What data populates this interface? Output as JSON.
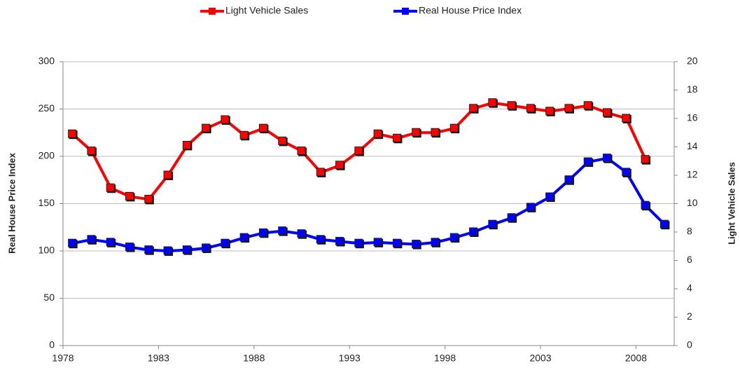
{
  "chart_data": {
    "type": "line",
    "x": [
      1978.5,
      1979.5,
      1980.5,
      1981.5,
      1982.5,
      1983.5,
      1984.5,
      1985.5,
      1986.5,
      1987.5,
      1988.5,
      1989.5,
      1990.5,
      1991.5,
      1992.5,
      1993.5,
      1994.5,
      1995.5,
      1996.5,
      1997.5,
      1998.5,
      1999.5,
      2000.5,
      2001.5,
      2002.5,
      2003.5,
      2004.5,
      2005.5,
      2006.5,
      2007.5,
      2008.5,
      2009.5
    ],
    "xlim": [
      1978,
      2010
    ],
    "xticks": [
      1978,
      1983,
      1988,
      1993,
      1998,
      2003,
      2008
    ],
    "ylim": [
      0,
      300
    ],
    "yticks": [
      0,
      50,
      100,
      150,
      200,
      250,
      300
    ],
    "y2lim": [
      0,
      20
    ],
    "y2ticks": [
      0,
      2,
      4,
      6,
      8,
      10,
      12,
      14,
      16,
      18,
      20
    ],
    "ylabel": "Real House Price Index",
    "y2label": "Light Vehicle Sales",
    "grid": true,
    "legend": "top",
    "series": [
      {
        "name": "Light Vehicle Sales",
        "color": "#ff0000",
        "axis": "y2",
        "values": [
          14.9,
          13.7,
          11.1,
          10.5,
          10.3,
          12.0,
          14.1,
          15.3,
          15.9,
          14.8,
          15.3,
          14.4,
          13.7,
          12.2,
          12.7,
          13.7,
          14.9,
          14.6,
          15.0,
          15.0,
          15.3,
          16.7,
          17.1,
          16.9,
          16.7,
          16.5,
          16.7,
          16.9,
          16.4,
          16.0,
          13.1,
          null
        ]
      },
      {
        "name": "Real House Price Index",
        "color": "#0000ff",
        "values": [
          108,
          112,
          109,
          104,
          101,
          100,
          101,
          103,
          108,
          114,
          119,
          121,
          118,
          112,
          110,
          108,
          109,
          108,
          107,
          109,
          114,
          120,
          128,
          135,
          146,
          157,
          175,
          194,
          198,
          183,
          148,
          128
        ]
      }
    ]
  }
}
